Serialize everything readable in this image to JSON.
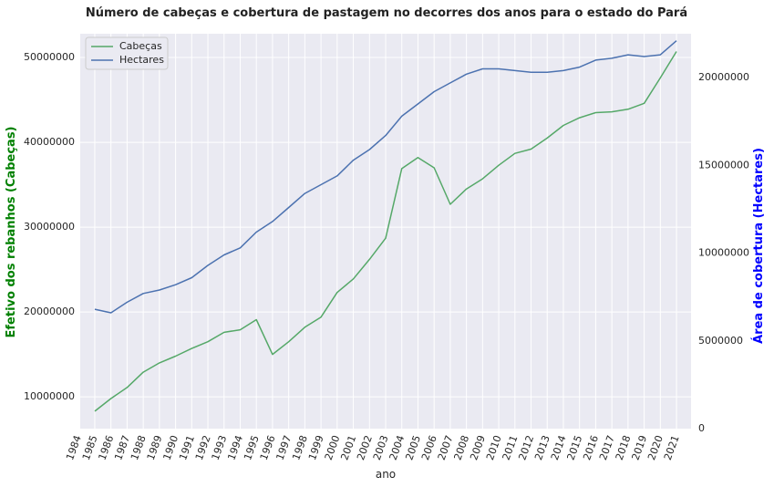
{
  "chart_data": {
    "type": "line",
    "title": "Número de cabeças e cobertura de pastagem no decorres dos anos para o estado do Pará",
    "xlabel": "ano",
    "ylabel_left": "Efetivo dos rebanhos (Cabeças)",
    "ylabel_right": "Área de cobertura (Hectares)",
    "ylabel_left_color": "#008000",
    "ylabel_right_color": "#0000ff",
    "x_ticks": [
      1984,
      1985,
      1986,
      1987,
      1988,
      1989,
      1990,
      1991,
      1992,
      1993,
      1994,
      1995,
      1996,
      1997,
      1998,
      1999,
      2000,
      2001,
      2002,
      2003,
      2004,
      2005,
      2006,
      2007,
      2008,
      2009,
      2010,
      2011,
      2012,
      2013,
      2014,
      2015,
      2016,
      2017,
      2018,
      2019,
      2020,
      2021
    ],
    "xlim": [
      1984.1,
      2021.9
    ],
    "ylim_left": [
      6250000,
      52800000
    ],
    "ylim_right": [
      0,
      22500000
    ],
    "yticks_left": [
      10000000,
      20000000,
      30000000,
      40000000,
      50000000
    ],
    "yticks_right": [
      0,
      5000000,
      10000000,
      15000000,
      20000000
    ],
    "ytick_labels_left": [
      "10000000",
      "20000000",
      "30000000",
      "40000000",
      "50000000"
    ],
    "ytick_labels_right": [
      "0",
      "5000000",
      "10000000",
      "15000000",
      "20000000"
    ],
    "grid": true,
    "legend_position": "top-left",
    "series": [
      {
        "name": "Cabeças",
        "axis": "left",
        "color": "#55a868",
        "x": [
          1985,
          1986,
          1987,
          1988,
          1989,
          1990,
          1991,
          1992,
          1993,
          1994,
          1995,
          1996,
          1997,
          1998,
          1999,
          2000,
          2001,
          2002,
          2003,
          2004,
          2005,
          2006,
          2007,
          2008,
          2009,
          2010,
          2011,
          2012,
          2013,
          2014,
          2015,
          2016,
          2017,
          2018,
          2019,
          2020,
          2021
        ],
        "values": [
          8300000,
          9800000,
          11100000,
          12900000,
          14000000,
          14800000,
          15700000,
          16500000,
          17600000,
          17900000,
          19100000,
          15000000,
          16500000,
          18200000,
          19400000,
          22300000,
          23900000,
          26200000,
          28700000,
          36900000,
          38200000,
          37000000,
          32700000,
          34500000,
          35700000,
          37300000,
          38700000,
          39200000,
          40500000,
          42000000,
          42900000,
          43500000,
          43600000,
          43900000,
          44600000,
          47600000,
          50700000
        ]
      },
      {
        "name": "Hectares",
        "axis": "right",
        "color": "#4c72b0",
        "x": [
          1985,
          1986,
          1987,
          1988,
          1989,
          1990,
          1991,
          1992,
          1993,
          1994,
          1995,
          1996,
          1997,
          1998,
          1999,
          2000,
          2001,
          2002,
          2003,
          2004,
          2005,
          2006,
          2007,
          2008,
          2009,
          2010,
          2011,
          2012,
          2013,
          2014,
          2015,
          2016,
          2017,
          2018,
          2019,
          2020,
          2021
        ],
        "values": [
          6800000,
          6600000,
          7200000,
          7700000,
          7900000,
          8200000,
          8600000,
          9300000,
          9900000,
          10300000,
          11200000,
          11800000,
          12600000,
          13400000,
          13900000,
          14400000,
          15300000,
          15900000,
          16700000,
          17800000,
          18500000,
          19200000,
          19700000,
          20200000,
          20500000,
          20500000,
          20400000,
          20300000,
          20300000,
          20400000,
          20600000,
          21000000,
          21100000,
          21300000,
          21200000,
          21300000,
          22100000
        ]
      }
    ]
  }
}
